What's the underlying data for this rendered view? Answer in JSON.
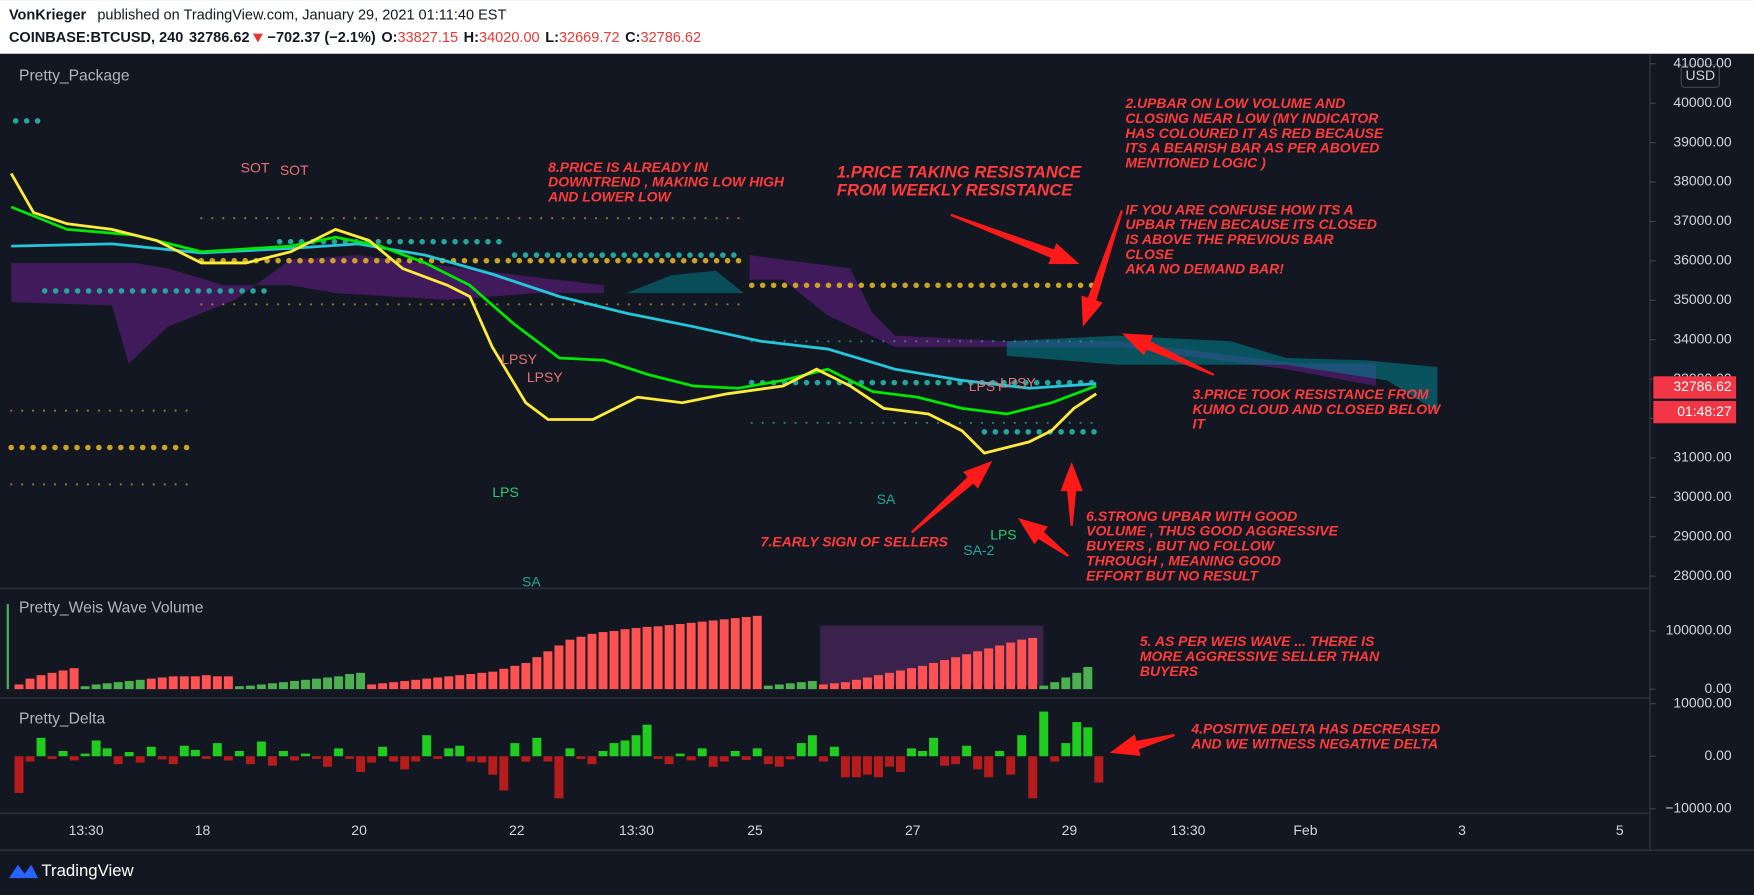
{
  "header": {
    "author": "VonKrieger",
    "published": "published on TradingView.com, January 29, 2021 01:11:40 EST",
    "symbol": "COINBASE:BTCUSD, 240",
    "last": "32786.62",
    "change": "−702.37 (−2.1%)",
    "o_label": "O:",
    "o": "33827.15",
    "h_label": "H:",
    "h": "34020.00",
    "l_label": "L:",
    "l": "32669.72",
    "c_label": "C:",
    "c": "32786.62"
  },
  "price_pane": {
    "title": "Pretty_Package",
    "currency": "USD",
    "ticks": [
      {
        "value": 41000,
        "label": "41000.00"
      },
      {
        "value": 40000,
        "label": "40000.00"
      },
      {
        "value": 39000,
        "label": "39000.00"
      },
      {
        "value": 38000,
        "label": "38000.00"
      },
      {
        "value": 37000,
        "label": "37000.00"
      },
      {
        "value": 36000,
        "label": "36000.00"
      },
      {
        "value": 35000,
        "label": "35000.00"
      },
      {
        "value": 34000,
        "label": "34000.00"
      },
      {
        "value": 33000,
        "label": "33000.00"
      },
      {
        "value": 32000,
        "label": "32000.00"
      },
      {
        "value": 31000,
        "label": "31000.00"
      },
      {
        "value": 30000,
        "label": "30000.00"
      },
      {
        "value": 29000,
        "label": "29000.00"
      },
      {
        "value": 28000,
        "label": "28000.00"
      }
    ],
    "last_price": {
      "value": 32786.62,
      "label": "32786.62"
    },
    "countdown": "01:48:27",
    "labels": [
      {
        "text": "SOT",
        "kind": "sell"
      },
      {
        "text": "SOT",
        "kind": "sell"
      },
      {
        "text": "LPSY",
        "kind": "sell"
      },
      {
        "text": "LPSY",
        "kind": "sell"
      },
      {
        "text": "LPSY",
        "kind": "sell"
      },
      {
        "text": "LPSY",
        "kind": "sell"
      },
      {
        "text": "LPS",
        "kind": "buy"
      },
      {
        "text": "LPS",
        "kind": "buy"
      },
      {
        "text": "SA",
        "kind": "neutral"
      },
      {
        "text": "SA",
        "kind": "neutral"
      },
      {
        "text": "SA-2",
        "kind": "neutral"
      }
    ]
  },
  "volume_pane": {
    "title": "Pretty_Weis Wave Volume",
    "ticks": [
      {
        "value": 100000,
        "label": "100000.00"
      },
      {
        "value": 0,
        "label": "0.00"
      }
    ],
    "waves": [
      {
        "color": "#ff5252",
        "values": [
          8000,
          18000,
          24000,
          28000,
          32000,
          36000
        ]
      },
      {
        "color": "#4caf50",
        "values": [
          5000,
          8000,
          10000,
          12000,
          14000,
          16000
        ]
      },
      {
        "color": "#ff5252",
        "values": [
          18000,
          20000,
          22000,
          22000,
          22000,
          24000,
          22000,
          22000
        ]
      },
      {
        "color": "#4caf50",
        "values": [
          5000,
          6000,
          8000,
          10000,
          12000,
          14000,
          16000,
          18000,
          20000,
          22000,
          26000,
          28000
        ]
      },
      {
        "color": "#ff5252",
        "values": [
          8000,
          10000,
          12000,
          14000,
          16000,
          18000,
          20000,
          22000,
          24000,
          26000,
          28000,
          30000,
          35000,
          40000,
          45000,
          55000,
          65000,
          75000,
          85000,
          90000,
          95000,
          98000,
          100000,
          103000,
          105000,
          107000,
          108000,
          110000,
          112000,
          114000,
          116000,
          118000,
          120000,
          122000,
          124000,
          126000
        ]
      },
      {
        "color": "#4caf50",
        "values": [
          6000,
          8000,
          10000,
          12000,
          14000
        ]
      },
      {
        "color": "#ff5252",
        "values": [
          8000,
          10000,
          12000,
          16000,
          20000,
          24000,
          28000,
          32000,
          36000,
          40000,
          45000,
          50000,
          55000,
          60000,
          65000,
          70000,
          75000,
          80000,
          85000,
          88000
        ]
      },
      {
        "color": "#4caf50",
        "values": [
          6000,
          12000,
          20000,
          28000,
          38000
        ]
      }
    ]
  },
  "delta_pane": {
    "title": "Pretty_Delta",
    "ticks": [
      {
        "value": 10000,
        "label": "10000.00"
      },
      {
        "value": 0,
        "label": "0.00"
      },
      {
        "value": -10000,
        "label": "−10000.00"
      }
    ],
    "values": [
      -7000,
      -1000,
      3500,
      -500,
      1000,
      -800,
      500,
      3000,
      1500,
      -1500,
      800,
      -1200,
      1800,
      -600,
      -1500,
      2000,
      1200,
      -500,
      2500,
      -800,
      1000,
      -1500,
      2800,
      -1800,
      1000,
      -800,
      500,
      -500,
      -2000,
      1500,
      -500,
      -3000,
      -1200,
      1800,
      -1000,
      -2500,
      -1000,
      4000,
      -500,
      1500,
      2000,
      -1000,
      -1200,
      -3500,
      -6500,
      2500,
      -1000,
      3500,
      -1000,
      -8000,
      1500,
      -500,
      -1500,
      1000,
      2500,
      3000,
      4000,
      6000,
      -500,
      -1500,
      500,
      -800,
      1500,
      -2000,
      -1000,
      1000,
      -700,
      1500,
      -1500,
      -2000,
      -600,
      2500,
      4000,
      -1000,
      1800,
      -4000,
      -4000,
      -3500,
      -4000,
      -2000,
      -3000,
      1500,
      1000,
      3500,
      -1800,
      -1500,
      2000,
      -2500,
      -4000,
      1000,
      -3500,
      4000,
      -8000,
      8500,
      -1000,
      2500,
      6500,
      5500,
      -5000
    ]
  },
  "time_axis": [
    "13:30",
    "18",
    "20",
    "22",
    "13:30",
    "25",
    "27",
    "29",
    "13:30",
    "Feb",
    "3",
    "5"
  ],
  "annotations": [
    {
      "lines": [
        "1.PRICE TAKING RESISTANCE",
        "FROM WEEKLY RESISTANCE"
      ]
    },
    {
      "lines": [
        "2.UPBAR ON LOW VOLUME AND",
        "CLOSING NEAR LOW (MY INDICATOR",
        "HAS COLOURED IT AS RED BECAUSE",
        "ITS A BEARISH BAR AS PER ABOVED",
        "MENTIONED LOGIC )"
      ]
    },
    {
      "lines": [
        "IF YOU ARE CONFUSE HOW ITS A",
        "UPBAR THEN BECAUSE ITS CLOSED",
        "IS ABOVE THE PREVIOUS BAR",
        "CLOSE"
      ]
    },
    {
      "lines": [
        "AKA NO DEMAND BAR!"
      ]
    },
    {
      "lines": [
        "3.PRICE TOOK RESISTANCE FROM",
        "KUMO CLOUD AND CLOSED BELOW",
        "IT"
      ]
    },
    {
      "lines": [
        "4.POSITIVE DELTA HAS DECREASED",
        "AND WE WITNESS NEGATIVE DELTA"
      ]
    },
    {
      "lines": [
        "5. AS PER WEIS WAVE ... THERE IS",
        "MORE AGGRESSIVE SELLER THAN",
        "BUYERS"
      ]
    },
    {
      "lines": [
        "6.STRONG UPBAR WITH GOOD",
        "VOLUME , THUS GOOD AGGRESSIVE",
        "BUYERS , BUT NO FOLLOW",
        "THROUGH , MEANING GOOD",
        "EFFORT BUT NO RESULT"
      ]
    },
    {
      "lines": [
        "7.EARLY SIGN OF SELLERS"
      ]
    },
    {
      "lines": [
        "8.PRICE IS ALREADY IN",
        "DOWNTREND , MAKING LOW HIGH",
        "AND LOWER LOW"
      ]
    }
  ],
  "footer": {
    "brand": "TradingView"
  }
}
